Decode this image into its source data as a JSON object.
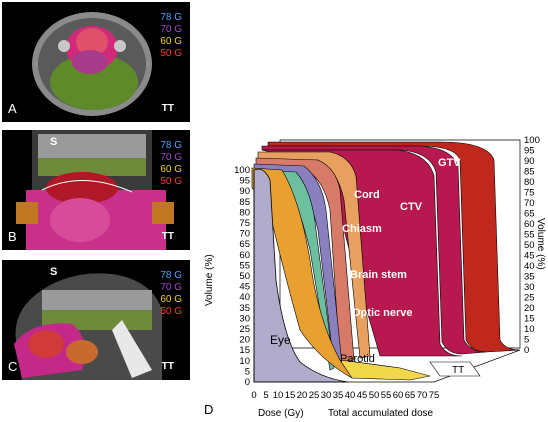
{
  "panels": [
    {
      "label": "A",
      "orientation_label": "",
      "footer": "TT",
      "legend": [
        {
          "text": "78 G",
          "color": "#4aa3ff"
        },
        {
          "text": "70 G",
          "color": "#a04ad0"
        },
        {
          "text": "60 G",
          "color": "#f0d020"
        },
        {
          "text": "50 G",
          "color": "#ff3a2a"
        }
      ]
    },
    {
      "label": "B",
      "orientation_label": "S",
      "footer": "TT",
      "legend": [
        {
          "text": "78 G",
          "color": "#4aa3ff"
        },
        {
          "text": "70 G",
          "color": "#a04ad0"
        },
        {
          "text": "60 G",
          "color": "#f0d020"
        },
        {
          "text": "50 G",
          "color": "#ff3a2a"
        }
      ]
    },
    {
      "label": "C",
      "orientation_label": "S",
      "footer": "TT",
      "legend": [
        {
          "text": "78 G",
          "color": "#4aa3ff"
        },
        {
          "text": "70 G",
          "color": "#a04ad0"
        },
        {
          "text": "60 G",
          "color": "#f0d020"
        },
        {
          "text": "50 G",
          "color": "#ff3a2a"
        }
      ]
    }
  ],
  "dvh": {
    "panel_label": "D",
    "ylabel_left": "Volume (%)",
    "ylabel_right": "Volume (%)",
    "xlabel": "Dose (Gy)",
    "xlabel_depth": "Total accumulated dose",
    "corner_label": "TT",
    "x_ticks": [
      "0",
      "5",
      "10",
      "15",
      "20",
      "25",
      "30",
      "35",
      "40",
      "45",
      "50",
      "55",
      "60",
      "65",
      "70",
      "75"
    ],
    "y_ticks": [
      "0",
      "5",
      "10",
      "15",
      "20",
      "25",
      "30",
      "35",
      "40",
      "45",
      "50",
      "55",
      "60",
      "65",
      "70",
      "75",
      "80",
      "85",
      "90",
      "95",
      "100"
    ],
    "structures": [
      {
        "name": "GTV",
        "color": "#c0281e"
      },
      {
        "name": "CTV",
        "color": "#b81850"
      },
      {
        "name": "Cord",
        "color": "#e8a060"
      },
      {
        "name": "Chiasm",
        "color": "#f0a840"
      },
      {
        "name": "Brain stem",
        "color": "#9aa0c8"
      },
      {
        "name": "Optic nerve",
        "color": "#e89a40"
      },
      {
        "name": "Parotid",
        "color": "#e8a030"
      },
      {
        "name": "Eye",
        "color": "#b0aacb"
      }
    ]
  }
}
